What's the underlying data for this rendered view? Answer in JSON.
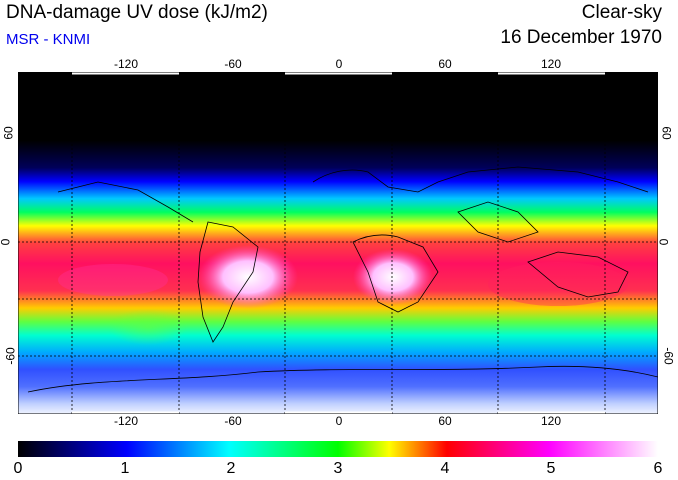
{
  "header": {
    "title": "DNA-damage UV dose (kJ/m2)",
    "subtitle": "MSR - KNMI",
    "condition": "Clear-sky",
    "date": "16 December 1970"
  },
  "map": {
    "longitude_labels": [
      "-120",
      "-60",
      "0",
      "60",
      "120"
    ],
    "latitude_labels": [
      "60",
      "0",
      "-60"
    ],
    "colors": {
      "background": "#000000",
      "gridlines": "#000000",
      "coastlines": "#000000"
    }
  },
  "colorbar": {
    "labels": [
      "0",
      "1",
      "2",
      "3",
      "4",
      "5",
      "6"
    ],
    "colors": [
      "#000000",
      "#0000ff",
      "#00ffff",
      "#00ff00",
      "#ffff00",
      "#ff0000",
      "#ff00ff",
      "#ffffff"
    ]
  }
}
